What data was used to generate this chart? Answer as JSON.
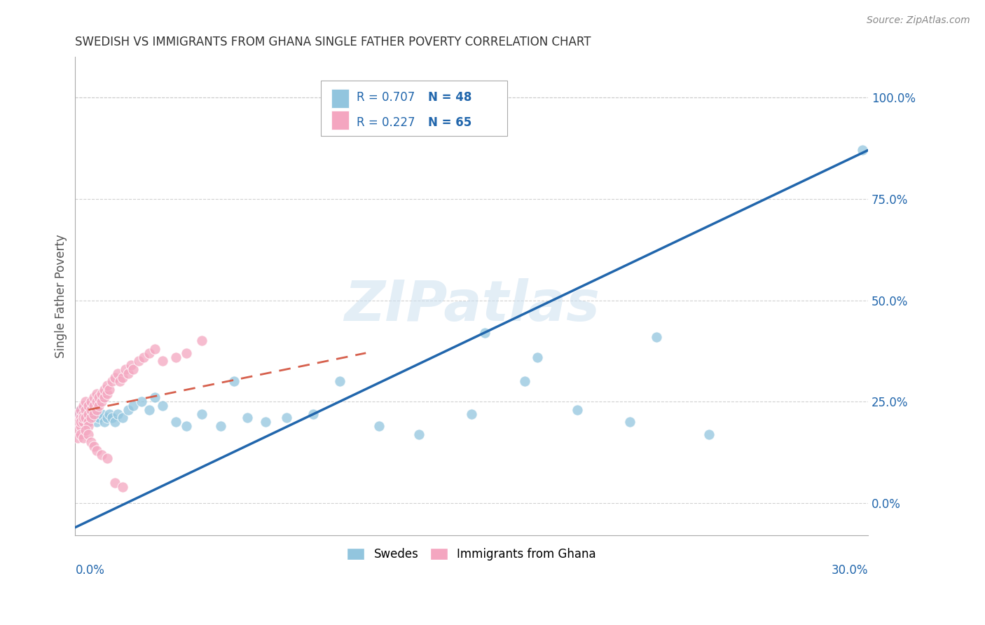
{
  "title": "SWEDISH VS IMMIGRANTS FROM GHANA SINGLE FATHER POVERTY CORRELATION CHART",
  "source": "Source: ZipAtlas.com",
  "ylabel": "Single Father Poverty",
  "watermark": "ZIPatlas",
  "blue_color": "#92c5de",
  "pink_color": "#f4a6c0",
  "blue_line_color": "#2166ac",
  "pink_line_color": "#d6604d",
  "swedes_label": "Swedes",
  "ghana_label": "Immigrants from Ghana",
  "xmin": 0.0,
  "xmax": 0.3,
  "ymin": -0.08,
  "ymax": 1.1,
  "background_color": "#ffffff",
  "grid_color": "#cccccc",
  "title_color": "#333333",
  "axis_label_color": "#555555",
  "blue_scatter_x": [
    0.001,
    0.002,
    0.002,
    0.003,
    0.003,
    0.004,
    0.004,
    0.005,
    0.005,
    0.006,
    0.007,
    0.008,
    0.009,
    0.01,
    0.011,
    0.012,
    0.013,
    0.014,
    0.015,
    0.016,
    0.018,
    0.02,
    0.022,
    0.025,
    0.028,
    0.03,
    0.033,
    0.038,
    0.042,
    0.048,
    0.055,
    0.06,
    0.065,
    0.072,
    0.08,
    0.09,
    0.1,
    0.115,
    0.13,
    0.15,
    0.17,
    0.19,
    0.21,
    0.24,
    0.155,
    0.175,
    0.22,
    0.298
  ],
  "blue_scatter_y": [
    0.22,
    0.21,
    0.23,
    0.2,
    0.22,
    0.21,
    0.23,
    0.2,
    0.22,
    0.21,
    0.22,
    0.2,
    0.21,
    0.22,
    0.2,
    0.21,
    0.22,
    0.21,
    0.2,
    0.22,
    0.21,
    0.23,
    0.24,
    0.25,
    0.23,
    0.26,
    0.24,
    0.2,
    0.19,
    0.22,
    0.19,
    0.3,
    0.21,
    0.2,
    0.21,
    0.22,
    0.3,
    0.19,
    0.17,
    0.22,
    0.3,
    0.23,
    0.2,
    0.17,
    0.42,
    0.36,
    0.41,
    0.87
  ],
  "pink_scatter_x": [
    0.001,
    0.001,
    0.001,
    0.002,
    0.002,
    0.002,
    0.002,
    0.003,
    0.003,
    0.003,
    0.003,
    0.004,
    0.004,
    0.004,
    0.005,
    0.005,
    0.005,
    0.005,
    0.006,
    0.006,
    0.006,
    0.007,
    0.007,
    0.007,
    0.008,
    0.008,
    0.008,
    0.009,
    0.009,
    0.01,
    0.01,
    0.011,
    0.011,
    0.012,
    0.012,
    0.013,
    0.014,
    0.015,
    0.016,
    0.017,
    0.018,
    0.019,
    0.02,
    0.021,
    0.022,
    0.024,
    0.026,
    0.028,
    0.03,
    0.033,
    0.038,
    0.042,
    0.048,
    0.001,
    0.002,
    0.003,
    0.004,
    0.005,
    0.006,
    0.007,
    0.008,
    0.01,
    0.012,
    0.015,
    0.018
  ],
  "pink_scatter_y": [
    0.22,
    0.2,
    0.18,
    0.21,
    0.19,
    0.23,
    0.2,
    0.22,
    0.2,
    0.24,
    0.21,
    0.23,
    0.21,
    0.25,
    0.22,
    0.2,
    0.24,
    0.19,
    0.21,
    0.23,
    0.25,
    0.22,
    0.24,
    0.26,
    0.23,
    0.25,
    0.27,
    0.24,
    0.26,
    0.25,
    0.27,
    0.26,
    0.28,
    0.27,
    0.29,
    0.28,
    0.3,
    0.31,
    0.32,
    0.3,
    0.31,
    0.33,
    0.32,
    0.34,
    0.33,
    0.35,
    0.36,
    0.37,
    0.38,
    0.35,
    0.36,
    0.37,
    0.4,
    0.16,
    0.17,
    0.16,
    0.18,
    0.17,
    0.15,
    0.14,
    0.13,
    0.12,
    0.11,
    0.05,
    0.04
  ],
  "blue_line_x": [
    0.0,
    0.3
  ],
  "blue_line_y": [
    -0.06,
    0.87
  ],
  "pink_line_x": [
    0.005,
    0.11
  ],
  "pink_line_y": [
    0.23,
    0.37
  ],
  "right_ytick_vals": [
    0.0,
    0.25,
    0.5,
    0.75,
    1.0
  ],
  "right_yticklabels": [
    "0.0%",
    "25.0%",
    "50.0%",
    "75.0%",
    "100.0%"
  ]
}
